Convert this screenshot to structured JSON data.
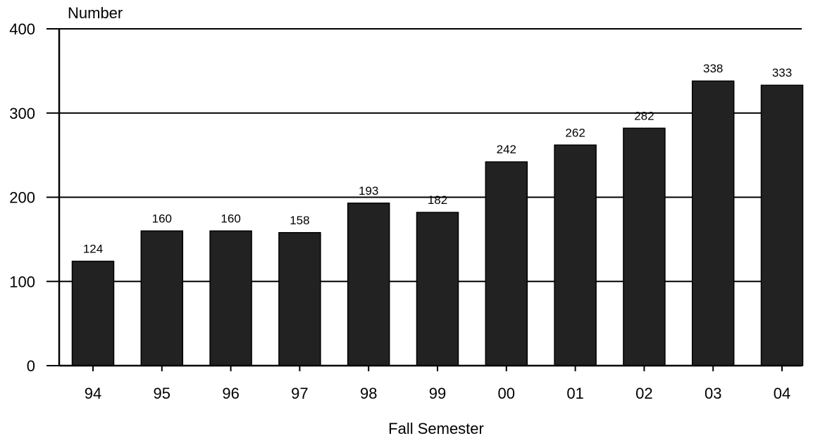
{
  "chart_data": {
    "type": "bar",
    "title": "",
    "xlabel": "Fall Semester",
    "ylabel": "Number",
    "categories": [
      "94",
      "95",
      "96",
      "97",
      "98",
      "99",
      "00",
      "01",
      "02",
      "03",
      "04"
    ],
    "values": [
      124,
      160,
      160,
      158,
      193,
      182,
      242,
      262,
      282,
      338,
      333
    ],
    "ylim": [
      0,
      400
    ],
    "yticks": [
      0,
      100,
      200,
      300,
      400
    ],
    "grid": true,
    "legend": "none",
    "bar_color": "#222222",
    "grid_color": "#000000"
  }
}
